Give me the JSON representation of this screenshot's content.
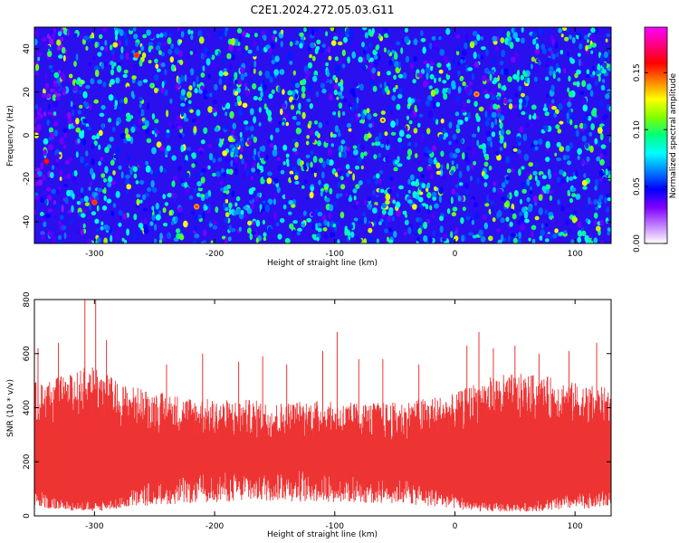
{
  "title": "C2E1.2024.272.05.03.G11",
  "chart_data": [
    {
      "type": "heatmap",
      "xlabel": "Height of straight line (km)",
      "ylabel": "Frequency (Hz)",
      "xlim": [
        -350,
        130
      ],
      "ylim": [
        -50,
        50
      ],
      "xticks": [
        -300,
        -200,
        -100,
        0,
        100
      ],
      "yticks": [
        -40,
        -20,
        0,
        20,
        40
      ],
      "colorbar": {
        "label": "Normalized spectral amplitude",
        "range": [
          0.0,
          0.19
        ],
        "ticks": [
          "0.00",
          "0.05",
          "0.10",
          "0.15"
        ],
        "colors": [
          "#ffffff",
          "#c080ff",
          "#8000ff",
          "#0000ff",
          "#0080ff",
          "#00ffff",
          "#00ff80",
          "#80ff00",
          "#ffff00",
          "#ff8000",
          "#ff0000",
          "#ff0080",
          "#ff00ff"
        ]
      },
      "peaks": [
        {
          "x": -340,
          "y": -12,
          "value": 0.16
        },
        {
          "x": -300,
          "y": -31,
          "value": 0.15
        },
        {
          "x": -265,
          "y": 37,
          "value": 0.15
        },
        {
          "x": -215,
          "y": -33,
          "value": 0.14
        },
        {
          "x": 18,
          "y": 19,
          "value": 0.14
        },
        {
          "x": -60,
          "y": 7,
          "value": 0.12
        }
      ]
    },
    {
      "type": "line",
      "xlabel": "Height of straight line (km)",
      "ylabel": "SNR (10 * v/v)",
      "xlim": [
        -350,
        130
      ],
      "ylim": [
        0,
        800
      ],
      "xticks": [
        -300,
        -200,
        -100,
        0,
        100
      ],
      "yticks": [
        0,
        200,
        400,
        600,
        800
      ],
      "color": "#ee3333",
      "series": [
        {
          "x": [
            -350,
            -320,
            -300,
            -280,
            -250,
            -220,
            -200,
            -170,
            -150,
            -120,
            -100,
            -70,
            -50,
            -20,
            0,
            20,
            40,
            60,
            80,
            100,
            130
          ],
          "envelope_upper": [
            470,
            500,
            540,
            470,
            440,
            420,
            410,
            410,
            400,
            410,
            400,
            400,
            400,
            420,
            430,
            480,
            500,
            500,
            490,
            470,
            450
          ],
          "envelope_lower": [
            60,
            40,
            30,
            50,
            80,
            90,
            100,
            100,
            110,
            100,
            100,
            90,
            90,
            70,
            50,
            30,
            30,
            30,
            40,
            50,
            60
          ],
          "spikes": [
            {
              "x": -347,
              "y": 620
            },
            {
              "x": -330,
              "y": 640
            },
            {
              "x": -308,
              "y": 820
            },
            {
              "x": -299,
              "y": 800
            },
            {
              "x": -290,
              "y": 650
            },
            {
              "x": -240,
              "y": 560
            },
            {
              "x": -210,
              "y": 600
            },
            {
              "x": -180,
              "y": 570
            },
            {
              "x": -160,
              "y": 590
            },
            {
              "x": -140,
              "y": 560
            },
            {
              "x": -110,
              "y": 610
            },
            {
              "x": -98,
              "y": 680
            },
            {
              "x": -80,
              "y": 580
            },
            {
              "x": -60,
              "y": 580
            },
            {
              "x": -30,
              "y": 560
            },
            {
              "x": 10,
              "y": 630
            },
            {
              "x": 20,
              "y": 680
            },
            {
              "x": 32,
              "y": 620
            },
            {
              "x": 50,
              "y": 630
            },
            {
              "x": 70,
              "y": 600
            },
            {
              "x": 95,
              "y": 610
            },
            {
              "x": 118,
              "y": 640
            }
          ]
        }
      ]
    }
  ]
}
